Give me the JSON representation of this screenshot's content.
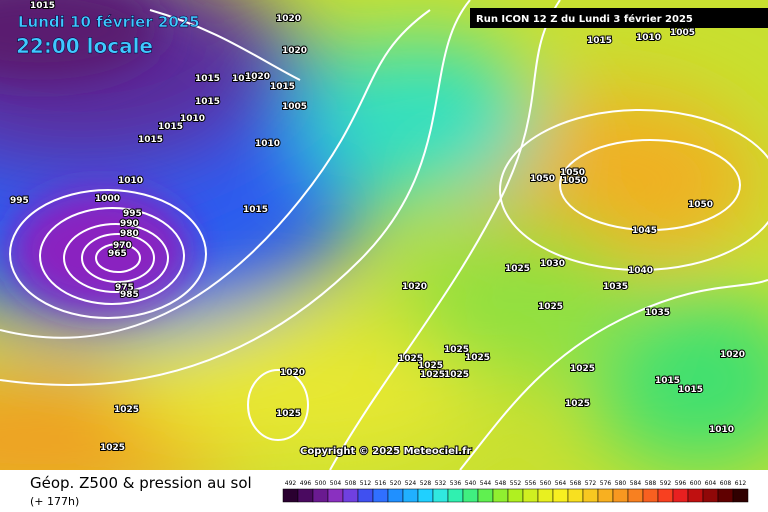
{
  "header": {
    "date": "Lundi 10 février 2025",
    "time": "22:00 locale",
    "run": "Run ICON 12 Z du Lundi 3 février 2025"
  },
  "copyright": "Copyright © 2025 Meteociel.fr",
  "footer": {
    "title": "Géop. Z500 & pression au sol",
    "subtitle": "(+ 177h)"
  },
  "legend": [
    492,
    496,
    500,
    504,
    508,
    512,
    516,
    520,
    524,
    528,
    532,
    536,
    540,
    544,
    548,
    552,
    556,
    560,
    564,
    568,
    572,
    576,
    580,
    584,
    588,
    592,
    596,
    600,
    604,
    608,
    612
  ],
  "isobars": [
    1015,
    1020,
    1020,
    1015,
    1010,
    1020,
    1015,
    1015,
    1005,
    1010,
    1015,
    1015,
    1010,
    1010,
    1000,
    995,
    995,
    990,
    980,
    970,
    965,
    975,
    985,
    1015,
    1020,
    1015,
    1010,
    1005,
    1050,
    1050,
    1050,
    1050,
    1045,
    1040,
    1035,
    1035,
    1030,
    1025,
    1025,
    1025,
    1025,
    1025,
    1025,
    1025,
    1025,
    1025,
    1025,
    1020,
    1015,
    1015,
    1010,
    1020,
    1025,
    1025,
    1025
  ]
}
